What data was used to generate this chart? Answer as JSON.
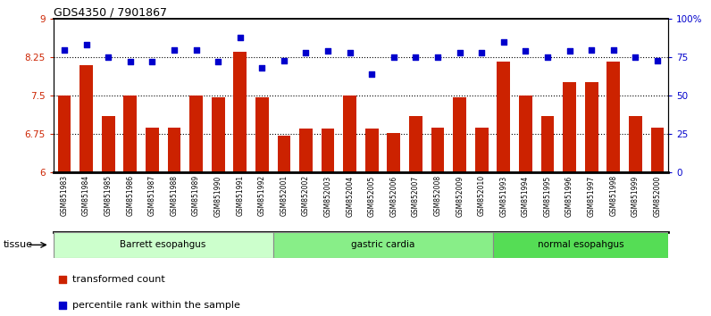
{
  "title": "GDS4350 / 7901867",
  "samples": [
    "GSM851983",
    "GSM851984",
    "GSM851985",
    "GSM851986",
    "GSM851987",
    "GSM851988",
    "GSM851989",
    "GSM851990",
    "GSM851991",
    "GSM851992",
    "GSM852001",
    "GSM852002",
    "GSM852003",
    "GSM852004",
    "GSM852005",
    "GSM852006",
    "GSM852007",
    "GSM852008",
    "GSM852009",
    "GSM852010",
    "GSM851993",
    "GSM851994",
    "GSM851995",
    "GSM851996",
    "GSM851997",
    "GSM851998",
    "GSM851999",
    "GSM852000"
  ],
  "bar_values": [
    7.5,
    8.1,
    7.1,
    7.5,
    6.87,
    6.87,
    7.5,
    7.47,
    8.35,
    7.47,
    6.72,
    6.85,
    6.85,
    7.5,
    6.85,
    6.76,
    7.1,
    6.87,
    7.47,
    6.87,
    8.17,
    7.5,
    7.1,
    7.76,
    7.76,
    8.17,
    7.1,
    6.87
  ],
  "percentile_values": [
    80,
    83,
    75,
    72,
    72,
    80,
    80,
    72,
    88,
    68,
    73,
    78,
    79,
    78,
    64,
    75,
    75,
    75,
    78,
    78,
    85,
    79,
    75,
    79,
    80,
    80,
    75,
    73
  ],
  "groups": [
    {
      "label": "Barrett esopahgus",
      "start": 0,
      "end": 10,
      "color": "#ccffcc"
    },
    {
      "label": "gastric cardia",
      "start": 10,
      "end": 20,
      "color": "#88ee88"
    },
    {
      "label": "normal esopahgus",
      "start": 20,
      "end": 28,
      "color": "#55dd55"
    }
  ],
  "ylim_left": [
    6,
    9
  ],
  "ylim_right": [
    0,
    100
  ],
  "yticks_left": [
    6,
    6.75,
    7.5,
    8.25,
    9
  ],
  "yticks_right": [
    0,
    25,
    50,
    75,
    100
  ],
  "ytick_labels_left": [
    "6",
    "6.75",
    "7.5",
    "8.25",
    "9"
  ],
  "ytick_labels_right": [
    "0",
    "25",
    "50",
    "75",
    "100%"
  ],
  "hlines": [
    6.75,
    7.5,
    8.25
  ],
  "bar_color": "#cc2200",
  "dot_color": "#0000cc",
  "bar_width": 0.6,
  "tissue_label": "tissue",
  "legend_bar_label": "transformed count",
  "legend_dot_label": "percentile rank within the sample",
  "xtick_bg": "#d8d8d8"
}
